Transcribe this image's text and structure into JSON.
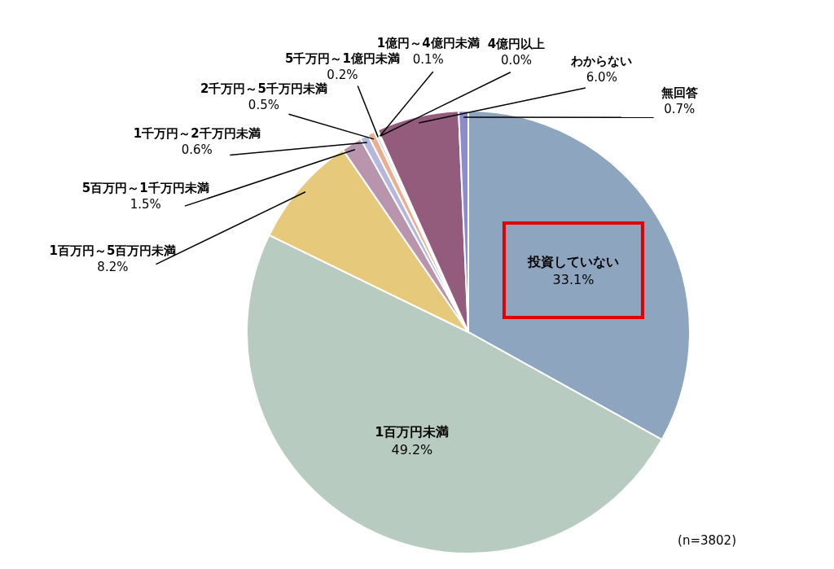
{
  "chart_data": {
    "type": "pie",
    "categories": [
      "投資していない",
      "1百万円未満",
      "1百万円～5百万円未満",
      "5百万円～1千万円未満",
      "1千万円～2千万円未満",
      "2千万円～5千万円未満",
      "5千万円～1億円未満",
      "1億円～4億円未満",
      "4億円以上",
      "わからない",
      "無回答"
    ],
    "values": [
      33.1,
      49.2,
      8.2,
      1.5,
      0.6,
      0.5,
      0.2,
      0.1,
      0.0,
      6.0,
      0.7
    ],
    "value_labels": [
      "33.1%",
      "49.2%",
      "8.2%",
      "1.5%",
      "0.6%",
      "0.5%",
      "0.2%",
      "0.1%",
      "0.0%",
      "6.0%",
      "0.7%"
    ],
    "colors": [
      "#8ea5c0",
      "#b8cbc0",
      "#e6c97a",
      "#b994ad",
      "#b3b8dc",
      "#e9b08f",
      "#c8d3e8",
      "#d9a0a0",
      "#a0c0a0",
      "#935b7c",
      "#8a8ccc"
    ],
    "annotations": [
      "(n=3802)"
    ]
  }
}
